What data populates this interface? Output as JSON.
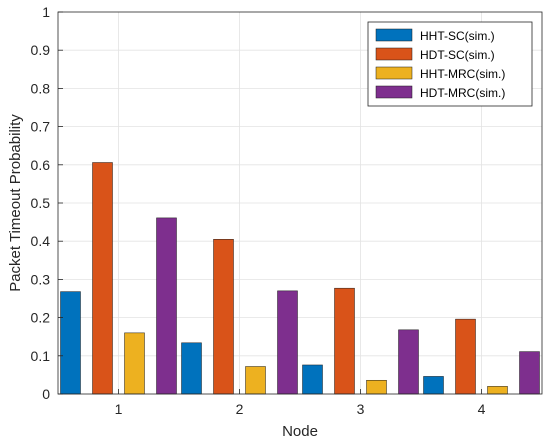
{
  "chart_data": {
    "type": "bar",
    "xlabel": "Node",
    "ylabel": "Packet Timeout Probability",
    "categories": [
      "1",
      "2",
      "3",
      "4"
    ],
    "ylim": [
      0,
      1
    ],
    "yticks": [
      0,
      0.1,
      0.2,
      0.3,
      0.4,
      0.5,
      0.6,
      0.7,
      0.8,
      0.9,
      1
    ],
    "ytick_labels": [
      "0",
      "0.1",
      "0.2",
      "0.3",
      "0.4",
      "0.5",
      "0.6",
      "0.7",
      "0.8",
      "0.9",
      "1"
    ],
    "grid": true,
    "legend_position": "top-right",
    "series": [
      {
        "name": "HHT-SC(sim.)",
        "color": "#0072BD",
        "values": [
          0.268,
          0.134,
          0.076,
          0.046
        ]
      },
      {
        "name": "HDT-SC(sim.)",
        "color": "#D95319",
        "values": [
          0.606,
          0.405,
          0.277,
          0.196
        ]
      },
      {
        "name": "HHT-MRC(sim.)",
        "color": "#EDB120",
        "values": [
          0.16,
          0.072,
          0.036,
          0.02
        ]
      },
      {
        "name": "HDT-MRC(sim.)",
        "color": "#7E2F8E",
        "values": [
          0.461,
          0.27,
          0.168,
          0.111
        ]
      }
    ]
  }
}
